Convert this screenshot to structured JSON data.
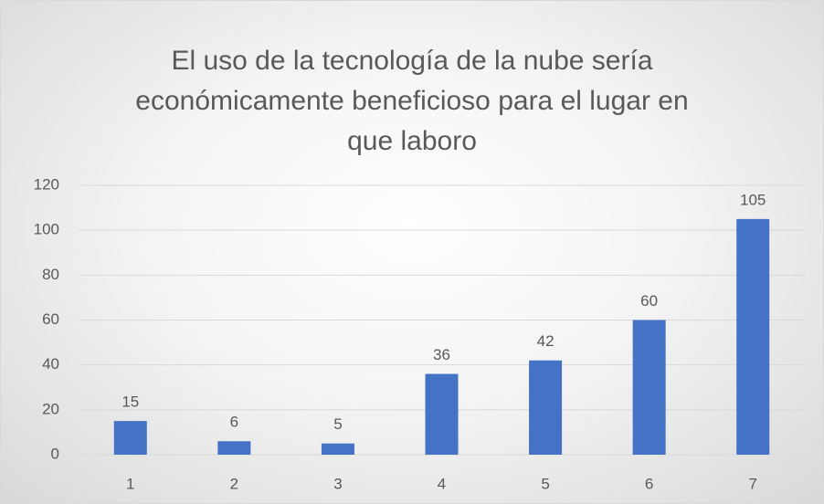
{
  "chart_data": {
    "type": "bar",
    "title": "El uso de la tecnología de la nube sería económicamente beneficioso para el lugar en que laboro",
    "categories": [
      "1",
      "2",
      "3",
      "4",
      "5",
      "6",
      "7"
    ],
    "values": [
      15,
      6,
      5,
      36,
      42,
      60,
      105
    ],
    "color": "#4472c4",
    "ylim": [
      0,
      120
    ],
    "yticks": [
      0,
      20,
      40,
      60,
      80,
      100,
      120
    ],
    "grid": true
  }
}
